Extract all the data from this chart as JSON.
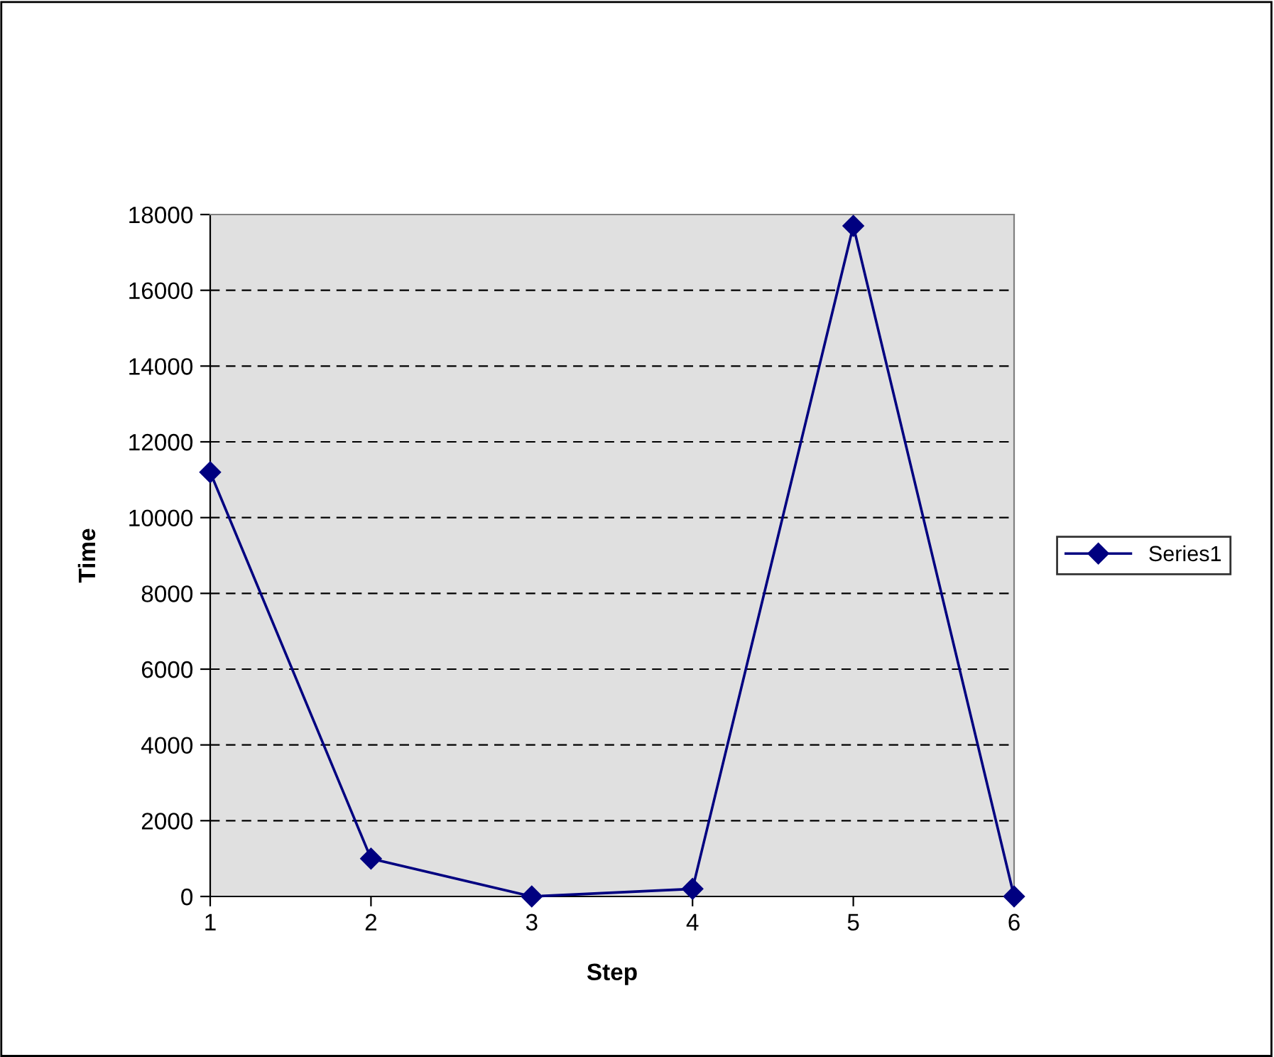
{
  "chart_data": {
    "type": "line",
    "xlabel": "Step",
    "ylabel": "Time",
    "categories": [
      "1",
      "2",
      "3",
      "4",
      "5",
      "6"
    ],
    "series": [
      {
        "name": "Series1",
        "color": "#000080",
        "values": [
          11200,
          1000,
          0,
          200,
          17700,
          0
        ]
      }
    ],
    "ylim": [
      0,
      18000
    ],
    "yticks": [
      0,
      2000,
      4000,
      6000,
      8000,
      10000,
      12000,
      14000,
      16000,
      18000
    ],
    "grid": "y",
    "legend": "right",
    "marker": "diamond",
    "line_style": "solid"
  }
}
